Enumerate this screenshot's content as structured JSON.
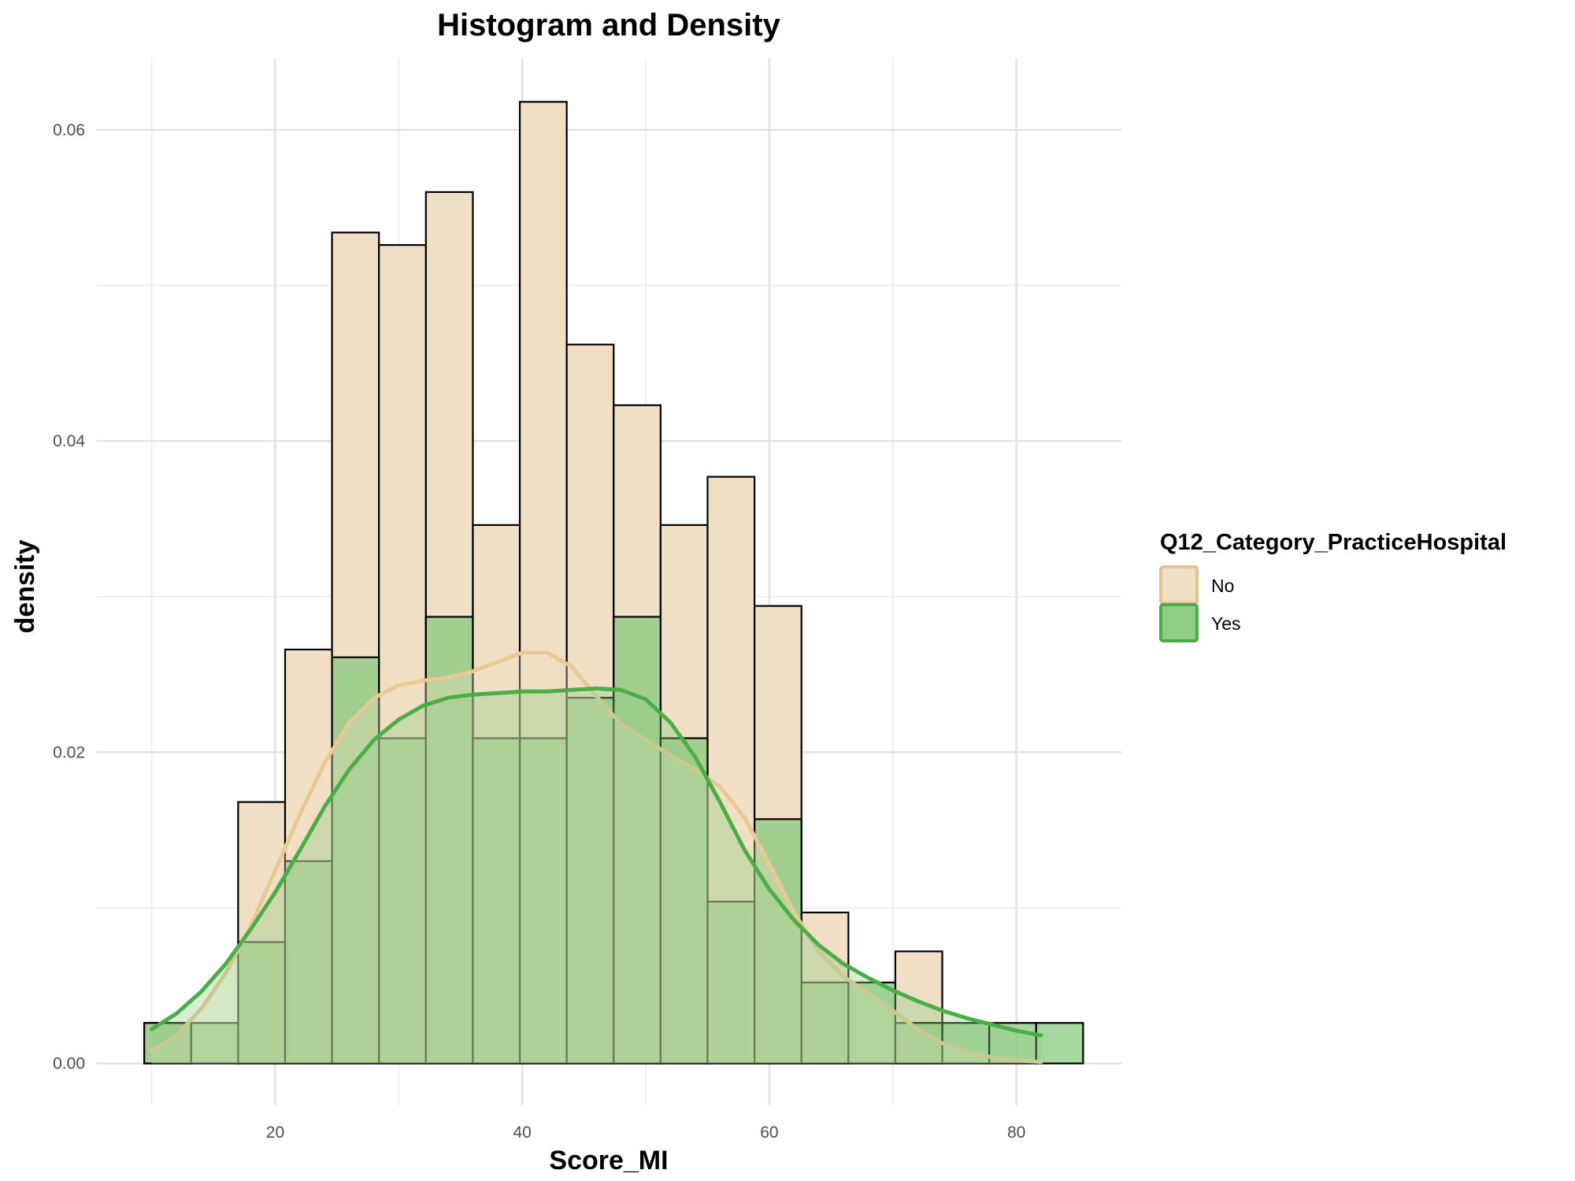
{
  "chart_data": {
    "type": "bar",
    "subtype": "histogram-with-density",
    "title": "Histogram and Density",
    "xlabel": "Score_MI",
    "ylabel": "density",
    "xlim": [
      5.5,
      88.5
    ],
    "ylim": [
      -0.0027,
      0.0646
    ],
    "x_ticks": [
      20,
      40,
      60,
      80
    ],
    "x_tick_labels": [
      "20",
      "40",
      "60",
      "80"
    ],
    "y_ticks": [
      0.0,
      0.02,
      0.04,
      0.06
    ],
    "y_tick_labels": [
      "0.00",
      "0.02",
      "0.04",
      "0.06"
    ],
    "grid": true,
    "legend": {
      "title": "Q12_Category_PracticeHospital",
      "placement": "right",
      "entries": [
        {
          "label": "No",
          "fill": "#f0dfc4",
          "stroke": "#e0c38f"
        },
        {
          "label": "Yes",
          "fill": "#8fcc85",
          "stroke": "#4aad46"
        }
      ]
    },
    "bin_width": 3.8,
    "series": [
      {
        "name": "No",
        "color": "#e8c995",
        "fill_color": "#f0dfc4",
        "bin_starts": [
          9.4,
          13.2,
          17.0,
          20.8,
          24.6,
          28.4,
          32.2,
          36.0,
          39.8,
          43.6,
          47.4,
          51.2,
          55.0,
          58.8,
          62.6,
          66.4,
          70.2,
          74.0,
          77.8,
          81.6
        ],
        "density": [
          0.0026,
          0.0,
          0.0168,
          0.0266,
          0.0534,
          0.0526,
          0.056,
          0.0346,
          0.0618,
          0.0462,
          0.0423,
          0.0346,
          0.0377,
          0.0294,
          0.0097,
          0.0,
          0.0072,
          0.0,
          0.0,
          0.0
        ],
        "kde_x": [
          10,
          12,
          14,
          16,
          18,
          20,
          22,
          24,
          26,
          28,
          30,
          32,
          34,
          36,
          38,
          40,
          42,
          44,
          46,
          48,
          50,
          52,
          54,
          56,
          58,
          60,
          62,
          64,
          66,
          68,
          70,
          72,
          74,
          76,
          78,
          80,
          82
        ],
        "kde_y": [
          0.0008,
          0.0018,
          0.0035,
          0.0058,
          0.0088,
          0.0124,
          0.016,
          0.0193,
          0.0219,
          0.0235,
          0.0243,
          0.0246,
          0.0248,
          0.0252,
          0.0258,
          0.0264,
          0.0264,
          0.0255,
          0.0236,
          0.0218,
          0.0208,
          0.0198,
          0.0189,
          0.0178,
          0.0158,
          0.0128,
          0.0097,
          0.0072,
          0.0056,
          0.0045,
          0.0034,
          0.0022,
          0.0013,
          0.0007,
          0.0004,
          0.0002,
          0.0001
        ]
      },
      {
        "name": "Yes",
        "color": "#4aad46",
        "fill_color": "#8fcc85",
        "bin_starts": [
          9.4,
          13.2,
          17.0,
          20.8,
          24.6,
          28.4,
          32.2,
          36.0,
          39.8,
          43.6,
          47.4,
          51.2,
          55.0,
          58.8,
          62.6,
          66.4,
          70.2,
          74.0,
          77.8,
          81.6
        ],
        "density": [
          0.0026,
          0.0026,
          0.0078,
          0.013,
          0.0261,
          0.0209,
          0.0287,
          0.0209,
          0.0209,
          0.0235,
          0.0287,
          0.0209,
          0.0104,
          0.0157,
          0.0052,
          0.0052,
          0.0026,
          0.0026,
          0.0026,
          0.0026
        ],
        "kde_x": [
          10,
          12,
          14,
          16,
          18,
          20,
          22,
          24,
          26,
          28,
          30,
          32,
          34,
          36,
          38,
          40,
          42,
          44,
          46,
          48,
          50,
          52,
          54,
          56,
          58,
          60,
          62,
          64,
          66,
          68,
          70,
          72,
          74,
          76,
          78,
          80,
          82
        ],
        "kde_y": [
          0.0022,
          0.0032,
          0.0046,
          0.0064,
          0.0086,
          0.011,
          0.0137,
          0.0165,
          0.0189,
          0.0208,
          0.0221,
          0.023,
          0.0235,
          0.0237,
          0.0238,
          0.0239,
          0.0239,
          0.024,
          0.0241,
          0.024,
          0.0234,
          0.0219,
          0.0197,
          0.0168,
          0.0137,
          0.0112,
          0.0092,
          0.0076,
          0.0064,
          0.0055,
          0.0047,
          0.004,
          0.0034,
          0.0029,
          0.0025,
          0.0021,
          0.0018
        ]
      }
    ]
  }
}
